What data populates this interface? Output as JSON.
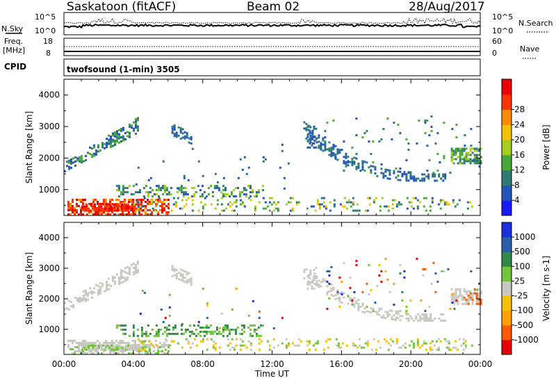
{
  "header": {
    "station": "Saskatoon (fitACF)",
    "beam": "Beam 02",
    "date": "28/Aug/2017"
  },
  "summary": {
    "nsky_label": "N.Sky",
    "nsearch_label": "N.Search",
    "nsky_top": "10^5",
    "nsky_bottom": "10^0",
    "nsearch_top": "10^5",
    "nsearch_bottom": "10^0",
    "freq_label_1": "Freq.",
    "freq_label_2": "[MHz]",
    "freq_top": "18",
    "freq_bottom": "8",
    "nave_label": "Nave",
    "nave_top": "60",
    "nave_bottom": "0",
    "cpid_label": "CPID",
    "cpid_text": "twofsound (1-min) 3505"
  },
  "colors": {
    "power": [
      "#1a1aff",
      "#2255bb",
      "#2f7a73",
      "#4aa83a",
      "#a6cc1f",
      "#f2c200",
      "#ff8a00",
      "#ff3300",
      "#e60000"
    ],
    "velocity": [
      "#e60000",
      "#ff5a00",
      "#ffa000",
      "#f5c000",
      "#c8c8c0",
      "#72c43c",
      "#2f8a4a",
      "#2a5faa",
      "#1a2fdd"
    ]
  },
  "chart_data": [
    {
      "type": "heatmap",
      "name": "power",
      "ylabel": "Slant Range [km]",
      "ylim": [
        180,
        4500
      ],
      "yticks": [
        "1000",
        "2000",
        "3000",
        "4000"
      ],
      "xlim": [
        0,
        24
      ],
      "xticks": [
        "00:00",
        "04:00",
        "08:00",
        "12:00",
        "16:00",
        "20:00",
        "00:00"
      ],
      "colorbar_label": "Power [dB]",
      "colorbar_ticks": [
        "4",
        "8",
        "12",
        "16",
        "20",
        "24",
        "28"
      ]
    },
    {
      "type": "heatmap",
      "name": "velocity",
      "ylabel": "Slant Range [km]",
      "ylim": [
        180,
        4500
      ],
      "yticks": [
        "1000",
        "2000",
        "3000",
        "4000"
      ],
      "xlim": [
        0,
        24
      ],
      "xticks": [
        "00:00",
        "04:00",
        "08:00",
        "12:00",
        "16:00",
        "20:00",
        "00:00"
      ],
      "xlabel": "Time UT",
      "colorbar_label": "Velocity [m s-1]",
      "colorbar_ticks": [
        "1000",
        "500",
        "100",
        "25",
        "-25",
        "-100",
        "-500",
        "-1000"
      ]
    }
  ]
}
